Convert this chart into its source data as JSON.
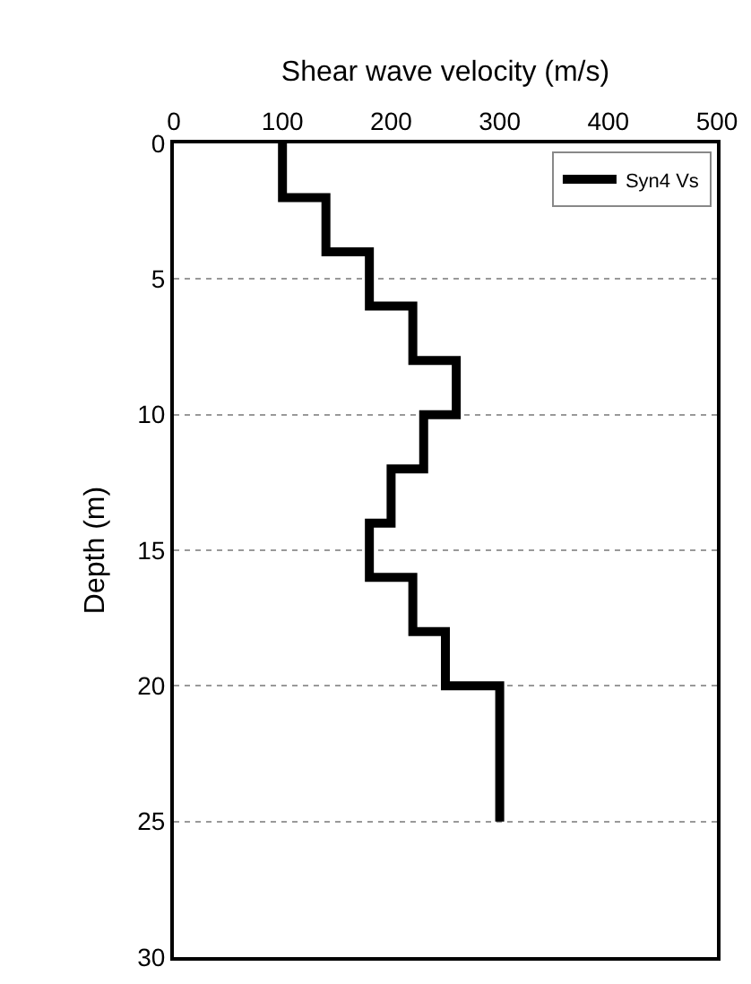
{
  "chart_data": {
    "type": "line",
    "xlabel": "Shear wave velocity (m/s)",
    "ylabel": "Depth (m)",
    "xlim": [
      0,
      500
    ],
    "xticks": [
      0,
      100,
      200,
      300,
      400,
      500
    ],
    "ylim": [
      30,
      0
    ],
    "yticks": [
      0,
      5,
      10,
      15,
      20,
      25,
      30
    ],
    "grid": "y",
    "legend": "top right",
    "line_style": "solid",
    "marker": "none",
    "series": [
      {
        "name": "Syn4 Vs",
        "color": "#000000",
        "x": [
          100,
          100,
          140,
          140,
          180,
          180,
          220,
          220,
          260,
          260,
          230,
          230,
          200,
          200,
          180,
          180,
          220,
          220,
          250,
          250,
          300,
          300
        ],
        "values": [
          0,
          2,
          2,
          4,
          4,
          6,
          6,
          8,
          8,
          10,
          10,
          12,
          12,
          14,
          14,
          16,
          16,
          18,
          18,
          20,
          20,
          25
        ]
      }
    ]
  }
}
